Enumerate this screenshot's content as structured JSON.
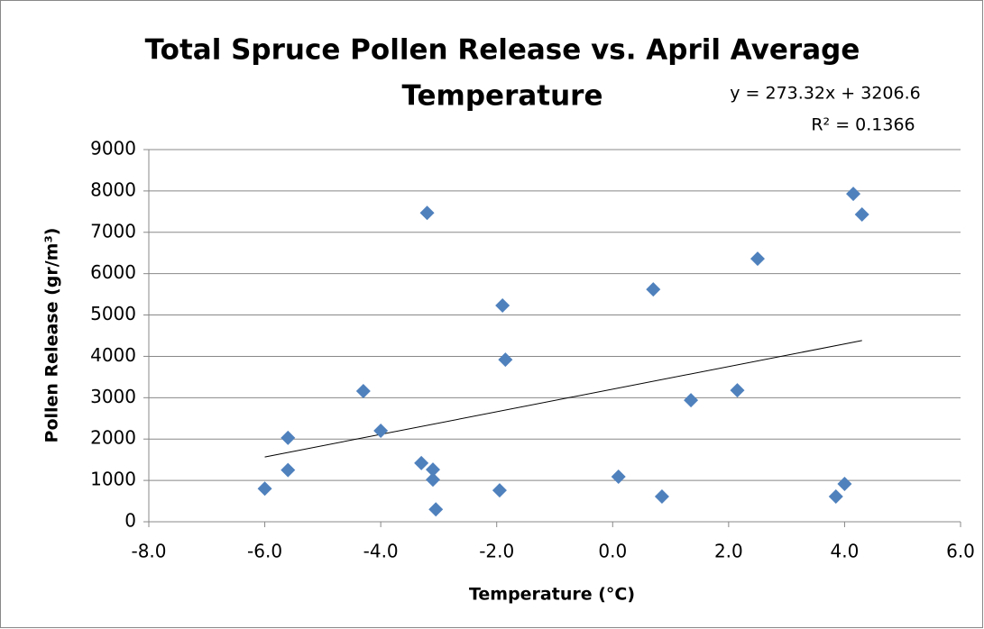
{
  "chart_data": {
    "type": "scatter",
    "title": [
      "Total Spruce Pollen Release vs. April Average",
      "Temperature"
    ],
    "x_label": "Temperature (°C)",
    "y_label": "Pollen Release (gr/m³)",
    "color": "#4f81bd",
    "x": [
      -6.0,
      -5.6,
      -5.6,
      -4.3,
      -4.0,
      -3.3,
      -3.2,
      -3.1,
      -3.1,
      -3.05,
      -1.95,
      -1.9,
      -1.85,
      0.1,
      0.7,
      0.85,
      1.35,
      2.15,
      2.5,
      3.85,
      4.0,
      4.15,
      4.3
    ],
    "values": [
      800,
      2030,
      1250,
      3160,
      2200,
      1420,
      7470,
      1260,
      1020,
      300,
      760,
      5230,
      3920,
      1090,
      5620,
      610,
      2940,
      3180,
      6360,
      610,
      915,
      7930,
      7430
    ],
    "xlim": [
      -8,
      6
    ],
    "xticks": [
      {
        "value": -8,
        "label": "-8.0"
      },
      {
        "value": -6,
        "label": "-6.0"
      },
      {
        "value": -4,
        "label": "-4.0"
      },
      {
        "value": -2,
        "label": "-2.0"
      },
      {
        "value": 0,
        "label": "0.0"
      },
      {
        "value": 2,
        "label": "2.0"
      },
      {
        "value": 4,
        "label": "4.0"
      },
      {
        "value": 6,
        "label": "6.0"
      }
    ],
    "ylim": [
      0,
      9000
    ],
    "yticks": [
      0,
      1000,
      2000,
      3000,
      4000,
      5000,
      6000,
      7000,
      8000,
      9000
    ],
    "grid": true,
    "trendline": {
      "slope": 273.32,
      "intercept": 3206.6,
      "label": "y = 273.32x + 3206.6",
      "r2_label": "R² = 0.1366"
    }
  }
}
